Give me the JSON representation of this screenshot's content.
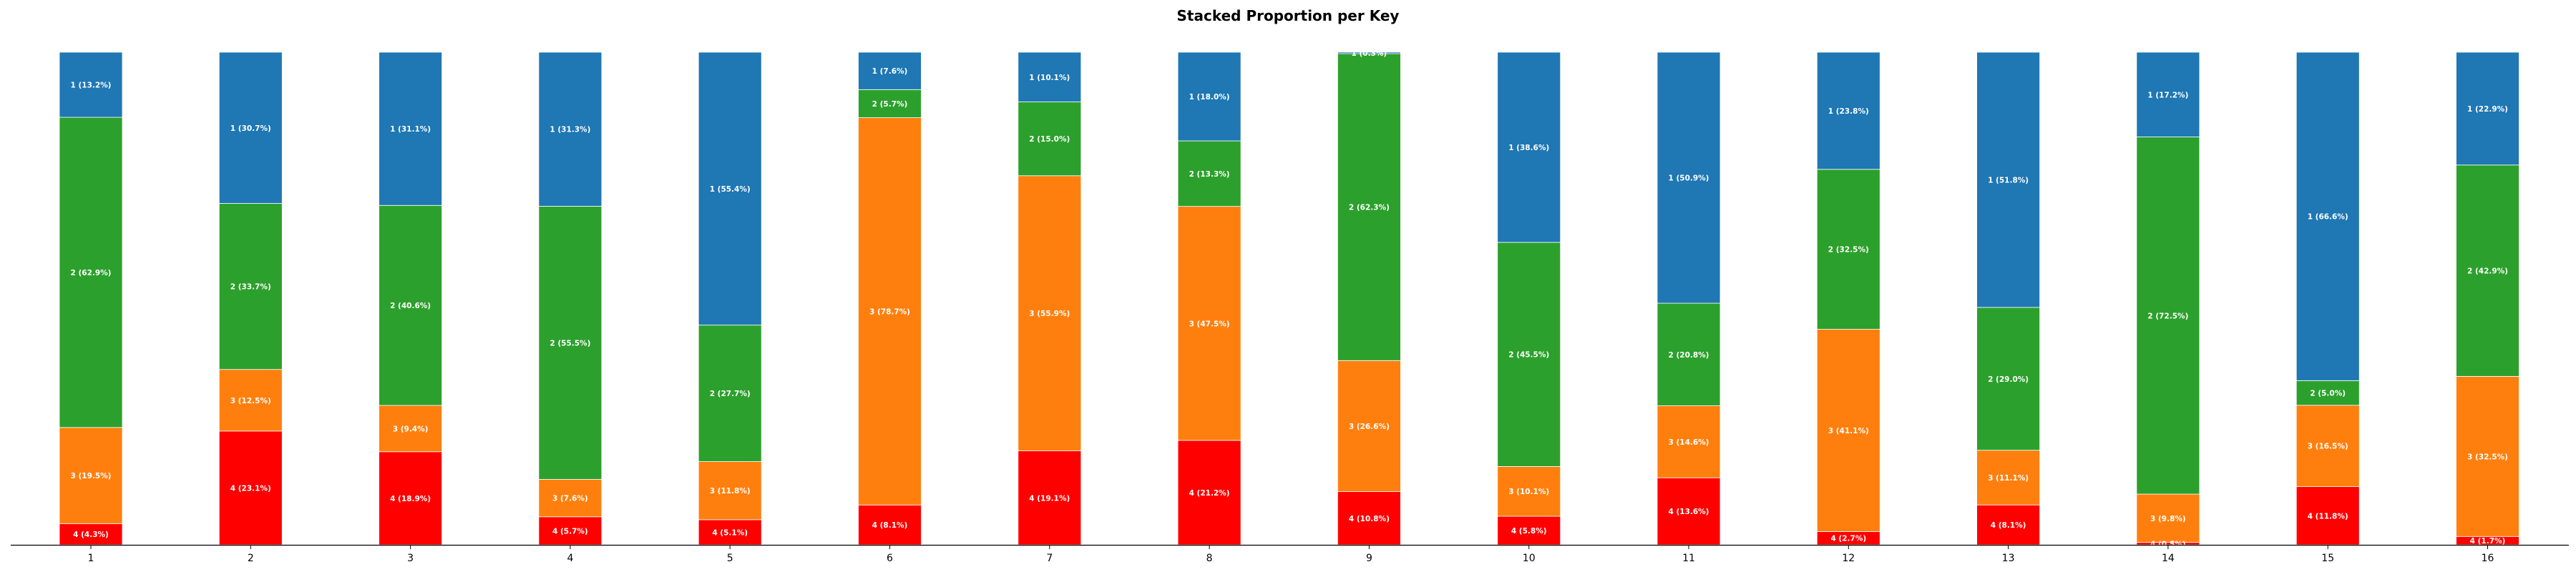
{
  "chart_data": {
    "type": "bar",
    "stacked": true,
    "normalized": true,
    "title": "Stacked Proportion per Key",
    "xlabel": "",
    "ylabel": "",
    "ylim": [
      0,
      1
    ],
    "categories": [
      "1",
      "2",
      "3",
      "4",
      "5",
      "6",
      "7",
      "8",
      "9",
      "10",
      "11",
      "12",
      "13",
      "14",
      "15",
      "16"
    ],
    "stack_order_bottom_to_top": [
      "4",
      "3",
      "2",
      "1"
    ],
    "colors": {
      "1": "#1f77b4",
      "2": "#2ca02c",
      "3": "#ff7f0e",
      "4": "#ff0000"
    },
    "series": [
      {
        "name": "4",
        "values": [
          4.3,
          23.1,
          18.9,
          5.7,
          5.1,
          8.1,
          19.1,
          21.2,
          10.8,
          5.8,
          13.6,
          2.7,
          8.1,
          0.5,
          11.8,
          1.7
        ]
      },
      {
        "name": "3",
        "values": [
          19.5,
          12.5,
          9.4,
          7.6,
          11.8,
          78.7,
          55.9,
          47.5,
          26.6,
          10.1,
          14.6,
          41.1,
          11.1,
          9.8,
          16.5,
          32.5
        ]
      },
      {
        "name": "2",
        "values": [
          62.9,
          33.7,
          40.6,
          55.5,
          27.7,
          5.7,
          15.0,
          13.3,
          62.3,
          45.5,
          20.8,
          32.5,
          29.0,
          72.5,
          5.0,
          42.9
        ]
      },
      {
        "name": "1",
        "values": [
          13.2,
          30.7,
          31.1,
          31.3,
          55.4,
          7.6,
          10.1,
          18.0,
          0.3,
          38.6,
          50.9,
          23.8,
          51.8,
          17.2,
          66.6,
          22.9
        ]
      }
    ],
    "segment_labels": [
      [
        "4 (4.3%)",
        "3 (19.5%)",
        "2 (62.9%)",
        "1 (13.2%)"
      ],
      [
        "4 (23.1%)",
        "3 (12.5%)",
        "2 (33.7%)",
        "1 (30.7%)"
      ],
      [
        "4 (18.9%)",
        "3 (9.4%)",
        "2 (40.6%)",
        "1 (31.1%)"
      ],
      [
        "4 (5.7%)",
        "3 (7.6%)",
        "2 (55.5%)",
        "1 (31.3%)"
      ],
      [
        "4 (5.1%)",
        "3 (11.8%)",
        "2 (27.7%)",
        "1 (55.4%)"
      ],
      [
        "4 (8.1%)",
        "3 (78.7%)",
        "2 (5.7%)",
        "1 (7.6%)"
      ],
      [
        "4 (19.1%)",
        "3 (55.9%)",
        "2 (15.0%)",
        "1 (10.1%)"
      ],
      [
        "4 (21.2%)",
        "3 (47.5%)",
        "2 (13.3%)",
        "1 (18.0%)"
      ],
      [
        "4 (10.8%)",
        "3 (26.6%)",
        "2 (62.3%)",
        "1 (0.3%)"
      ],
      [
        "4 (5.8%)",
        "3 (10.1%)",
        "2 (45.5%)",
        "1 (38.6%)"
      ],
      [
        "4 (13.6%)",
        "3 (14.6%)",
        "2 (20.8%)",
        "1 (50.9%)"
      ],
      [
        "4 (2.7%)",
        "3 (41.1%)",
        "2 (32.5%)",
        "1 (23.8%)"
      ],
      [
        "4 (8.1%)",
        "3 (11.1%)",
        "2 (29.0%)",
        "1 (51.8%)"
      ],
      [
        "4 (0.5%)",
        "3 (9.8%)",
        "2 (72.5%)",
        "1 (17.2%)"
      ],
      [
        "4 (11.8%)",
        "3 (16.5%)",
        "2 (5.0%)",
        "1 (66.6%)"
      ],
      [
        "4 (1.7%)",
        "3 (32.5%)",
        "2 (42.9%)",
        "1 (22.9%)"
      ]
    ],
    "grid": false,
    "legend": "none"
  }
}
